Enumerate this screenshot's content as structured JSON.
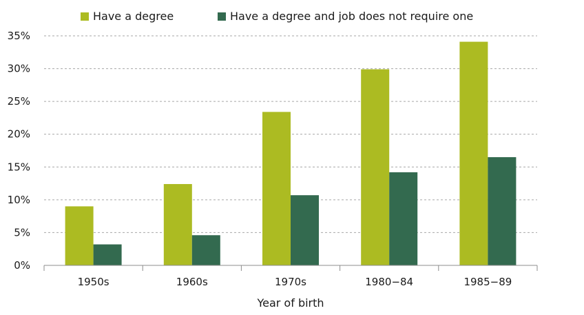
{
  "chart_data": {
    "type": "bar",
    "title": "",
    "xlabel": "Year of birth",
    "ylabel": "",
    "categories": [
      "1950s",
      "1960s",
      "1970s",
      "1980−84",
      "1985−89"
    ],
    "series": [
      {
        "name": "Have a degree",
        "color": "#acbb22",
        "values": [
          9.0,
          12.4,
          23.4,
          29.9,
          34.1
        ]
      },
      {
        "name": "Have a degree and job does not require one",
        "color": "#336a4f",
        "values": [
          3.2,
          4.6,
          10.7,
          14.2,
          16.5
        ]
      }
    ],
    "ylim": [
      0,
      35
    ],
    "yticks": [
      0,
      5,
      10,
      15,
      20,
      25,
      30,
      35
    ],
    "ytick_labels": [
      "0%",
      "5%",
      "10%",
      "15%",
      "20%",
      "25%",
      "30%",
      "35%"
    ],
    "grid": "horizontal dashed",
    "legend_position": "top"
  }
}
